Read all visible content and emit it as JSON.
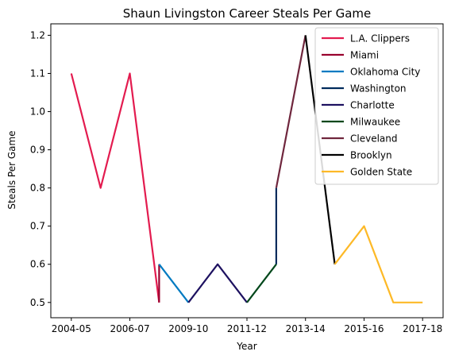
{
  "chart_data": {
    "type": "line",
    "title": "Shaun Livingston Career Steals Per Game",
    "xlabel": "Year",
    "ylabel": "Steals Per Game",
    "x_tick_labels": [
      "2004-05",
      "2006-07",
      "2009-10",
      "2011-12",
      "2013-14",
      "2015-16",
      "2017-18"
    ],
    "x_tick_positions": [
      0,
      2,
      4,
      6,
      8,
      10,
      12
    ],
    "xlim": [
      -0.7,
      12.7
    ],
    "ylim": [
      0.46,
      1.23
    ],
    "y_ticks": [
      0.5,
      0.6,
      0.7,
      0.8,
      0.9,
      1.0,
      1.1,
      1.2
    ],
    "y_tick_labels": [
      "0.5",
      "0.6",
      "0.7",
      "0.8",
      "0.9",
      "1.0",
      "1.1",
      "1.2"
    ],
    "grid": false,
    "legend_position": "top-right",
    "series": [
      {
        "name": "L.A. Clippers",
        "color": "#e31b4f",
        "points": [
          [
            0,
            1.1
          ],
          [
            1,
            0.8
          ],
          [
            2,
            1.1
          ],
          [
            3,
            0.5
          ]
        ]
      },
      {
        "name": "Miami",
        "color": "#98002e",
        "points": [
          [
            3,
            0.5
          ],
          [
            3,
            0.6
          ]
        ]
      },
      {
        "name": "Oklahoma City",
        "color": "#007ac1",
        "points": [
          [
            3,
            0.6
          ],
          [
            4,
            0.5
          ]
        ]
      },
      {
        "name": "Washington",
        "color": "#002b5c",
        "points": [
          [
            7,
            0.6
          ],
          [
            7,
            0.8
          ]
        ]
      },
      {
        "name": "Charlotte",
        "color": "#1d1160",
        "points": [
          [
            4,
            0.5
          ],
          [
            5,
            0.6
          ],
          [
            6,
            0.5
          ]
        ]
      },
      {
        "name": "Milwaukee",
        "color": "#00471b",
        "points": [
          [
            6,
            0.5
          ],
          [
            7,
            0.6
          ]
        ]
      },
      {
        "name": "Cleveland",
        "color": "#6f263d",
        "points": [
          [
            7,
            0.8
          ],
          [
            8,
            1.2
          ]
        ]
      },
      {
        "name": "Brooklyn",
        "color": "#000000",
        "points": [
          [
            8,
            1.2
          ],
          [
            9,
            0.6
          ]
        ]
      },
      {
        "name": "Golden State",
        "color": "#fdb927",
        "points": [
          [
            9,
            0.6
          ],
          [
            10,
            0.7
          ],
          [
            11,
            0.5
          ],
          [
            12,
            0.5
          ]
        ]
      }
    ]
  }
}
